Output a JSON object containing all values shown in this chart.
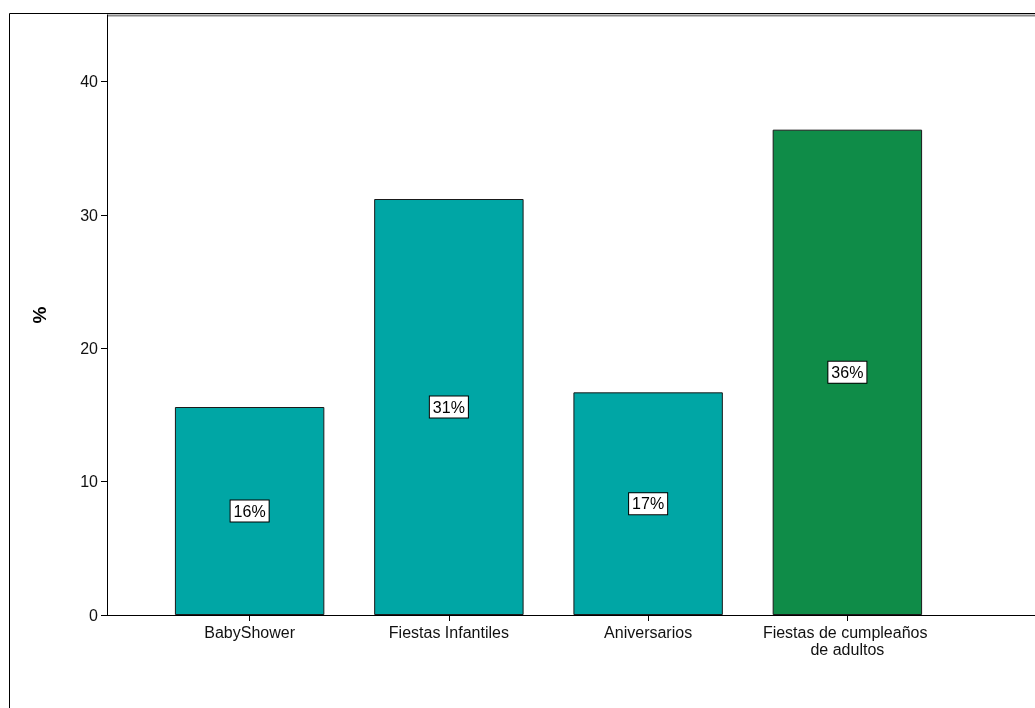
{
  "chart_data": {
    "type": "bar",
    "ylabel": "%",
    "categories": [
      "BabyShower",
      "Fiestas Infantiles",
      "Aniversarios",
      "Fiestas de cumpleaños de adultos"
    ],
    "values": [
      15.6,
      31.2,
      16.7,
      36.4
    ],
    "colors": [
      "#00a6a5",
      "#00a6a5",
      "#00a6a5",
      "#0f8c48"
    ],
    "value_labels": [
      "16%",
      "31%",
      "17%",
      "36%"
    ],
    "ylim": [
      0,
      45
    ],
    "yticks": [
      0,
      10,
      20,
      30,
      40
    ]
  }
}
